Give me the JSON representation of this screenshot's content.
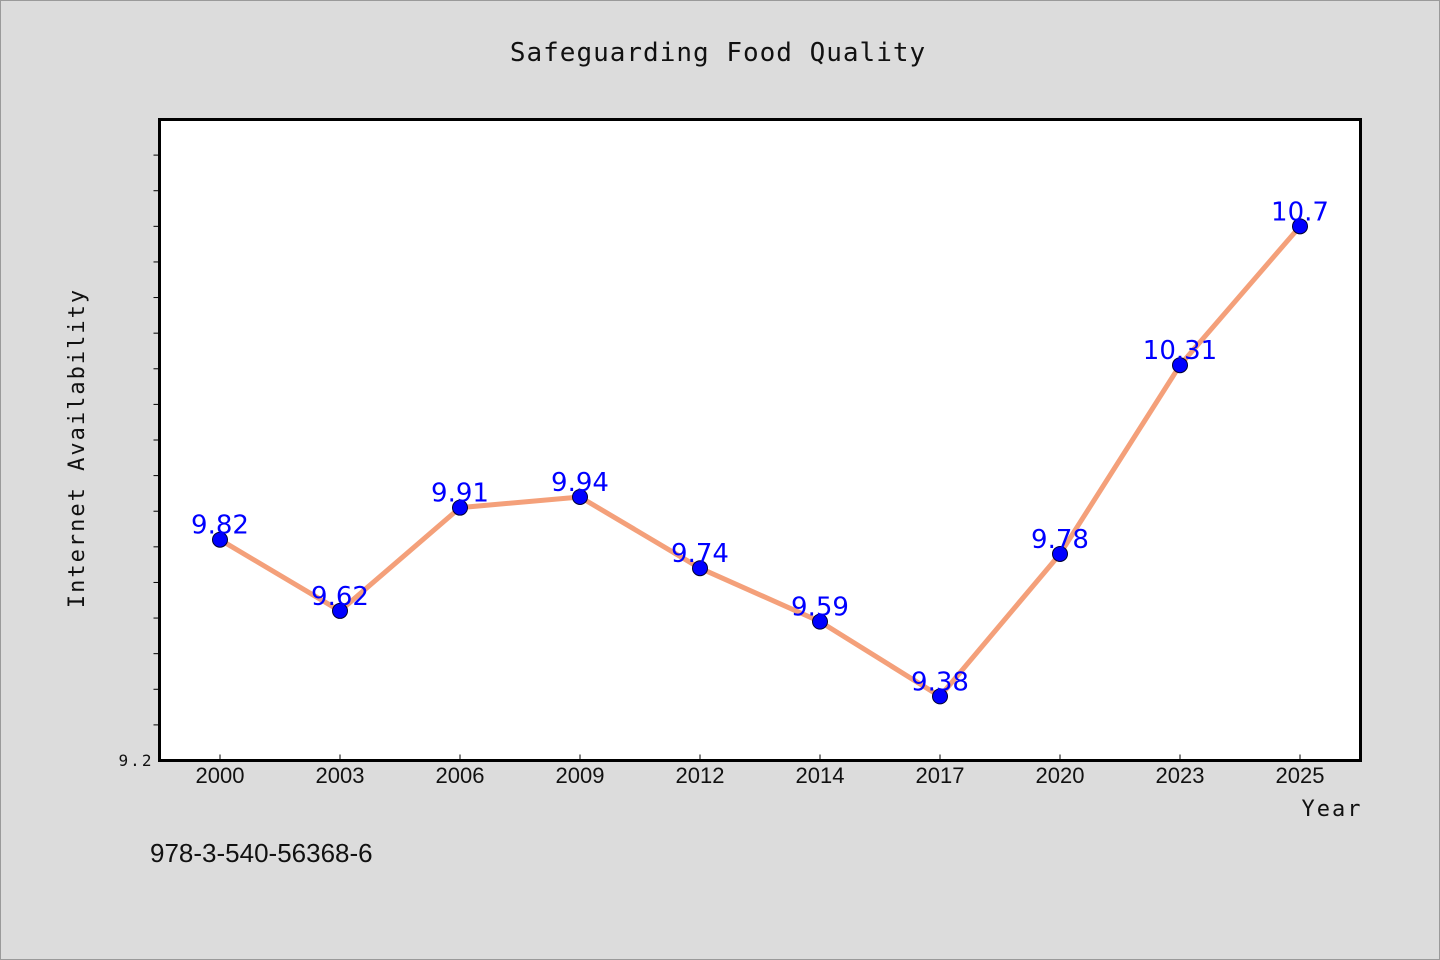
{
  "chart_data": {
    "type": "line",
    "title": "Safeguarding Food Quality",
    "xlabel": "Year",
    "ylabel": "Internet Availability",
    "categories": [
      "2000",
      "2003",
      "2006",
      "2009",
      "2012",
      "2014",
      "2017",
      "2020",
      "2023",
      "2025"
    ],
    "series": [
      {
        "values": [
          9.82,
          9.62,
          9.91,
          9.94,
          9.74,
          9.59,
          9.38,
          9.78,
          10.31,
          10.7
        ],
        "labels": [
          "9.82",
          "9.62",
          "9.91",
          "9.94",
          "9.74",
          "9.59",
          "9.38",
          "9.78",
          "10.31",
          "10.7"
        ]
      }
    ],
    "ylim": [
      9.2,
      11.0
    ],
    "yticks_labeled": [
      "9.2"
    ],
    "grid": false,
    "colors": {
      "line": "#f4a07a",
      "marker": "#0000ff",
      "data_label": "#0000ff"
    }
  },
  "footer_text": "978-3-540-56368-6"
}
